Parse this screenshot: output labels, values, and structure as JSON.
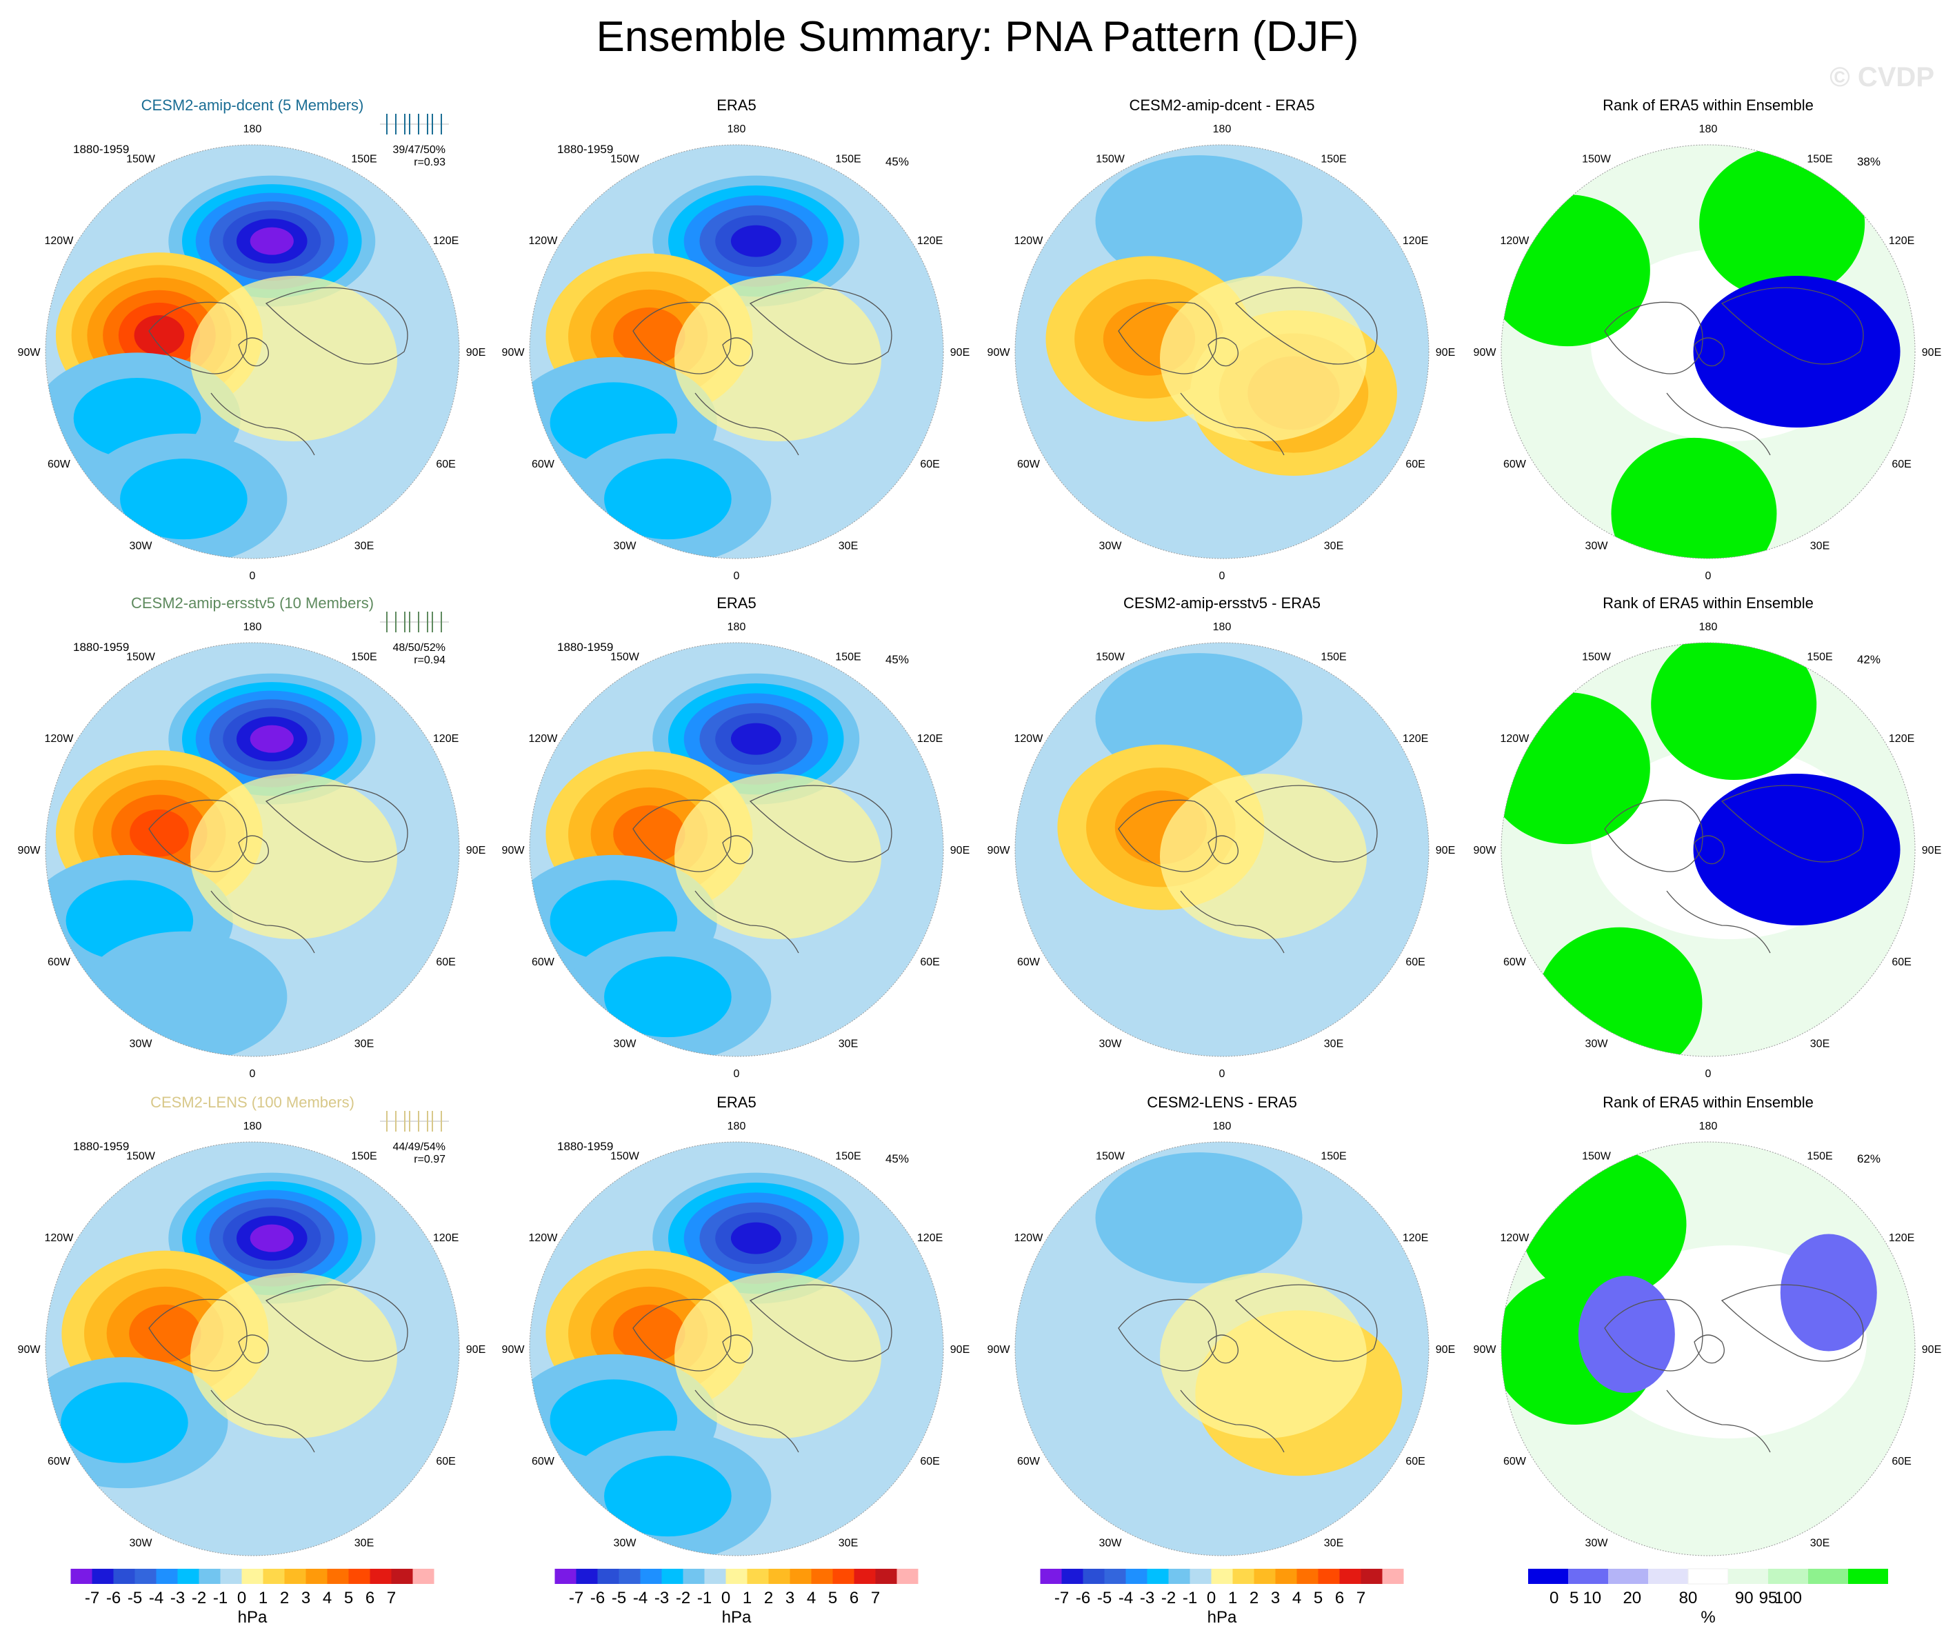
{
  "title": "Ensemble Summary: PNA Pattern (DJF)",
  "watermark": "© CVDP",
  "colors": {
    "neg7": "#7a1ae6",
    "neg6": "#1a18d8",
    "neg5": "#2a4fd6",
    "neg4": "#3366dd",
    "neg3": "#1e90ff",
    "neg2": "#00bfff",
    "neg1": "#72c5f0",
    "neg0": "#b4dcf2",
    "pos0": "#fff59a",
    "pos1": "#ffd84a",
    "pos2": "#ffbb22",
    "pos3": "#ff9a0a",
    "pos4": "#ff7000",
    "pos5": "#ff4a00",
    "pos6": "#e41a12",
    "pos7": "#c0161b",
    "pos8": "#ffb2b2",
    "rank": [
      "#0000e6",
      "#6b6bf5",
      "#b4b4f7",
      "#e2e2fa",
      "#ffffff",
      "#e6fae6",
      "#c2f8c2",
      "#8ef28e",
      "#00f000"
    ],
    "land": "#555555",
    "model_title_1": "#1a6d94",
    "model_title_2": "#5e8a5e",
    "model_title_3": "#d8c889"
  },
  "lon_labels": [
    "180",
    "150E",
    "120E",
    "90E",
    "60E",
    "30E",
    "0",
    "30W",
    "60W",
    "90W",
    "120W",
    "150W"
  ],
  "chart_data": [
    {
      "type": "heatmap",
      "row": 1,
      "panels": [
        {
          "title": "CESM2-amip-dcent (5 Members)",
          "period": "1880-1959",
          "stats": "39/47/50%",
          "corr": "r=0.93",
          "kind": "model",
          "features": [
            {
              "lon": 170,
              "lat": 52,
              "value": -7
            },
            {
              "lon": 260,
              "lat": 58,
              "value": 6
            },
            {
              "lon": 300,
              "lat": 45,
              "value": -2
            },
            {
              "lon": 335,
              "lat": 35,
              "value": -2
            }
          ]
        },
        {
          "title": "ERA5",
          "period": "1880-1959",
          "pct": "45%",
          "kind": "obs",
          "features": [
            {
              "lon": 170,
              "lat": 52,
              "value": -6
            },
            {
              "lon": 260,
              "lat": 60,
              "value": 4
            },
            {
              "lon": 300,
              "lat": 42,
              "value": -2
            },
            {
              "lon": 335,
              "lat": 35,
              "value": -2
            }
          ]
        },
        {
          "title": "CESM2-amip-dcent - ERA5",
          "kind": "diff",
          "features": [
            {
              "lon": 190,
              "lat": 45,
              "value": -1
            },
            {
              "lon": 260,
              "lat": 65,
              "value": 3
            },
            {
              "lon": 60,
              "lat": 62,
              "value": 3
            }
          ]
        },
        {
          "title": "Rank of ERA5 within Ensemble",
          "pct": "38%",
          "kind": "rank",
          "features": [
            {
              "lon": 240,
              "lat": 35,
              "value": 100
            },
            {
              "lon": 150,
              "lat": 40,
              "value": 100
            },
            {
              "lon": 90,
              "lat": 60,
              "value": 0
            },
            {
              "lon": 355,
              "lat": 35,
              "value": 100
            }
          ]
        }
      ]
    },
    {
      "type": "heatmap",
      "row": 2,
      "panels": [
        {
          "title": "CESM2-amip-ersstv5 (10 Members)",
          "period": "1880-1959",
          "stats": "48/50/52%",
          "corr": "r=0.94",
          "kind": "model",
          "features": [
            {
              "lon": 170,
              "lat": 52,
              "value": -7
            },
            {
              "lon": 260,
              "lat": 58,
              "value": 5
            },
            {
              "lon": 300,
              "lat": 42,
              "value": -2
            },
            {
              "lon": 335,
              "lat": 35,
              "value": -1
            }
          ]
        },
        {
          "title": "ERA5",
          "period": "1880-1959",
          "pct": "45%",
          "kind": "obs",
          "features": [
            {
              "lon": 170,
              "lat": 52,
              "value": -6
            },
            {
              "lon": 260,
              "lat": 60,
              "value": 4
            },
            {
              "lon": 300,
              "lat": 42,
              "value": -2
            },
            {
              "lon": 335,
              "lat": 35,
              "value": -2
            }
          ]
        },
        {
          "title": "CESM2-amip-ersstv5 - ERA5",
          "kind": "diff",
          "features": [
            {
              "lon": 190,
              "lat": 45,
              "value": -1
            },
            {
              "lon": 250,
              "lat": 68,
              "value": 3
            }
          ]
        },
        {
          "title": "Rank of ERA5 within Ensemble",
          "pct": "42%",
          "kind": "rank",
          "features": [
            {
              "lon": 240,
              "lat": 35,
              "value": 100
            },
            {
              "lon": 170,
              "lat": 40,
              "value": 100
            },
            {
              "lon": 90,
              "lat": 60,
              "value": 0
            },
            {
              "lon": 330,
              "lat": 30,
              "value": 100
            }
          ]
        }
      ]
    },
    {
      "type": "heatmap",
      "row": 3,
      "panels": [
        {
          "title": "CESM2-LENS (100 Members)",
          "period": "1880-1959",
          "stats": "44/49/54%",
          "corr": "r=0.97",
          "kind": "model",
          "features": [
            {
              "lon": 170,
              "lat": 52,
              "value": -7
            },
            {
              "lon": 260,
              "lat": 60,
              "value": 4
            },
            {
              "lon": 300,
              "lat": 40,
              "value": -2
            }
          ]
        },
        {
          "title": "ERA5",
          "period": "1880-1959",
          "pct": "45%",
          "kind": "obs",
          "features": [
            {
              "lon": 170,
              "lat": 52,
              "value": -6
            },
            {
              "lon": 260,
              "lat": 60,
              "value": 4
            },
            {
              "lon": 300,
              "lat": 42,
              "value": -2
            },
            {
              "lon": 335,
              "lat": 35,
              "value": -2
            }
          ]
        },
        {
          "title": "CESM2-LENS - ERA5",
          "kind": "diff",
          "features": [
            {
              "lon": 190,
              "lat": 45,
              "value": -1
            },
            {
              "lon": 60,
              "lat": 60,
              "value": 1
            }
          ]
        },
        {
          "title": "Rank of ERA5 within Ensemble",
          "pct": "62%",
          "kind": "rank",
          "features": [
            {
              "lon": 220,
              "lat": 35,
              "value": 100
            },
            {
              "lon": 270,
              "lat": 45,
              "value": 100
            },
            {
              "lon": 260,
              "lat": 62,
              "value": 5
            },
            {
              "lon": 115,
              "lat": 45,
              "value": 5
            }
          ]
        }
      ]
    }
  ],
  "colorbars": [
    {
      "labels": [
        "-7",
        "-6",
        "-5",
        "-4",
        "-3",
        "-2",
        "-1",
        "0",
        "1",
        "2",
        "3",
        "4",
        "5",
        "6",
        "7"
      ],
      "unit": "hPa"
    },
    {
      "labels": [
        "-7",
        "-6",
        "-5",
        "-4",
        "-3",
        "-2",
        "-1",
        "0",
        "1",
        "2",
        "3",
        "4",
        "5",
        "6",
        "7"
      ],
      "unit": "hPa"
    },
    {
      "labels": [
        "-7",
        "-6",
        "-5",
        "-4",
        "-3",
        "-2",
        "-1",
        "0",
        "1",
        "2",
        "3",
        "4",
        "5",
        "6",
        "7"
      ],
      "unit": "hPa"
    },
    {
      "labels": [
        "0",
        "5",
        "10",
        "20",
        "80",
        "90",
        "95",
        "100"
      ],
      "unit": "%"
    }
  ]
}
